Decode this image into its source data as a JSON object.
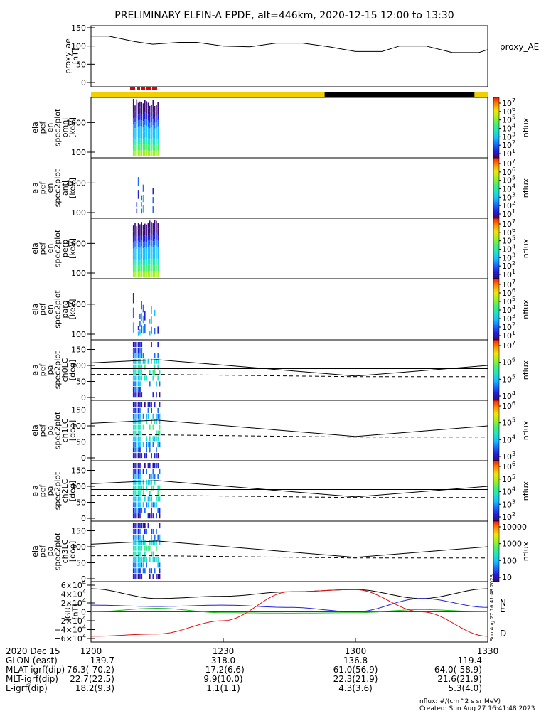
{
  "title": "PRELIMINARY ELFIN-A EPDE, alt=446km, 2020-12-15 12:00 to 13:30",
  "proxy_panel": {
    "ylabel": [
      "proxy_ae",
      "[nT]"
    ],
    "legend": "proxy_AE",
    "yticks": [
      "150",
      "100",
      "50",
      "0"
    ]
  },
  "spectra_panels": [
    {
      "ylabel": [
        "ela",
        "pef",
        "en",
        "spec2plot",
        "omni",
        "[keV]"
      ],
      "yticks": [
        "1000",
        "100"
      ]
    },
    {
      "ylabel": [
        "ela",
        "pef",
        "en",
        "spec2plot",
        "anti",
        "[keV]"
      ],
      "yticks": [
        "1000",
        "100"
      ]
    },
    {
      "ylabel": [
        "ela",
        "pef",
        "en",
        "spec2plot",
        "perp",
        "[keV]"
      ],
      "yticks": [
        "1000",
        "100"
      ]
    },
    {
      "ylabel": [
        "ela",
        "pef",
        "en",
        "spec2plot",
        "para",
        "[keV]"
      ],
      "yticks": [
        "1000",
        "100"
      ]
    }
  ],
  "pa_panels": [
    {
      "ylabel": [
        "ela",
        "pef",
        "pa",
        "spec2plot",
        "ch0LC",
        "[deg]"
      ],
      "yticks": [
        "150",
        "100",
        "50",
        "0"
      ]
    },
    {
      "ylabel": [
        "ela",
        "pef",
        "pa",
        "spec2plot",
        "ch1LC",
        "[deg]"
      ],
      "yticks": [
        "150",
        "100",
        "50",
        "0"
      ]
    },
    {
      "ylabel": [
        "ela",
        "pef",
        "pa",
        "spec2plot",
        "ch2LC",
        "[deg]"
      ],
      "yticks": [
        "150",
        "100",
        "50",
        "0"
      ]
    },
    {
      "ylabel": [
        "ela",
        "pef",
        "pa",
        "spec2plot",
        "ch3LC",
        "[deg]"
      ],
      "yticks": [
        "150",
        "100",
        "50",
        "0"
      ]
    }
  ],
  "colorbars": {
    "label": "nflux",
    "bars": [
      {
        "ticks": [
          "10",
          "10",
          "10",
          "10",
          "10",
          "10",
          "10"
        ],
        "exps": [
          "7",
          "6",
          "5",
          "4",
          "3",
          "2",
          "1"
        ]
      },
      {
        "ticks": [
          "10",
          "10",
          "10",
          "10",
          "10",
          "10",
          "10"
        ],
        "exps": [
          "7",
          "6",
          "5",
          "4",
          "3",
          "2",
          "1"
        ]
      },
      {
        "ticks": [
          "10",
          "10",
          "10",
          "10",
          "10",
          "10",
          "10"
        ],
        "exps": [
          "7",
          "6",
          "5",
          "4",
          "3",
          "2",
          "1"
        ]
      },
      {
        "ticks": [
          "10",
          "10",
          "10",
          "10",
          "10",
          "10",
          "10"
        ],
        "exps": [
          "7",
          "6",
          "5",
          "4",
          "3",
          "2",
          "1"
        ]
      },
      {
        "ticks": [
          "10",
          "10",
          "10",
          "10"
        ],
        "exps": [
          "7",
          "6",
          "5",
          "4"
        ]
      },
      {
        "ticks": [
          "10",
          "10",
          "10",
          "10"
        ],
        "exps": [
          "6",
          "5",
          "4",
          "3"
        ]
      },
      {
        "ticks": [
          "10",
          "10",
          "10",
          "10",
          "10"
        ],
        "exps": [
          "6",
          "5",
          "4",
          "3",
          "2"
        ]
      },
      {
        "ticks": [
          "10000",
          "1000",
          "100",
          "10"
        ],
        "exps": [
          "",
          "",
          "",
          ""
        ]
      }
    ]
  },
  "igrf_panel": {
    "ylabel": [
      "IGRF",
      "[nT]"
    ],
    "yticks": [
      {
        "m": "6",
        "e": "4",
        "neg": false
      },
      {
        "m": "4",
        "e": "4",
        "neg": false
      },
      {
        "m": "2",
        "e": "4",
        "neg": false
      },
      {
        "m": "0",
        "e": "",
        "neg": false
      },
      {
        "m": "2",
        "e": "4",
        "neg": true
      },
      {
        "m": "4",
        "e": "4",
        "neg": true
      },
      {
        "m": "6",
        "e": "4",
        "neg": true
      }
    ],
    "legend": [
      {
        "label": "N",
        "color": "#1f1fe0"
      },
      {
        "label": "E",
        "color": "#20c020"
      },
      {
        "label": "D",
        "color": "#e01010"
      }
    ],
    "stamp": "Sun Aug 27 16:41:48 2023"
  },
  "orbit_table": {
    "row_labels": [
      "2020 Dec 15",
      "GLON (east)",
      "MLAT-igrf(dip)",
      "MLT-igrf(dip)",
      "L-igrf(dip)"
    ],
    "columns": [
      {
        "time": "1200",
        "values": [
          "139.7",
          "-76.3(-70.2)",
          "22.7(22.5)",
          "18.2(9.3)"
        ]
      },
      {
        "time": "1230",
        "values": [
          "318.0",
          "-17.2(6.6)",
          "9.9(10.0)",
          "1.1(1.1)"
        ]
      },
      {
        "time": "1300",
        "values": [
          "136.8",
          "61.0(56.9)",
          "22.3(21.9)",
          "4.3(3.6)"
        ]
      },
      {
        "time": "1330",
        "values": [
          "119.4",
          "-64.0(-58.9)",
          "21.6(21.9)",
          "5.3(4.0)"
        ]
      }
    ]
  },
  "footer": {
    "units": "nflux: #/(cm^2 s sr MeV)",
    "created": "Created: Sun Aug 27 16:41:48 2023"
  },
  "chart_data": {
    "type": "line",
    "xlim": [
      "12:00",
      "13:30"
    ],
    "proxy_ae": {
      "name": "proxy_AE",
      "ylim": [
        0,
        160
      ],
      "x_min": [
        0,
        4,
        10,
        14,
        20,
        24,
        30,
        36,
        42,
        48,
        54,
        60,
        66,
        70,
        76,
        82,
        88,
        90
      ],
      "y": [
        127,
        127,
        112,
        105,
        110,
        110,
        100,
        98,
        108,
        108,
        98,
        85,
        85,
        100,
        100,
        82,
        82,
        90
      ]
    },
    "pitch_angle_lines": {
      "ylim": [
        0,
        180
      ],
      "x_min": [
        0,
        15,
        60,
        90
      ],
      "solid_upper": [
        108,
        118,
        67,
        100
      ],
      "solid_lower": [
        90,
        90,
        90,
        90
      ],
      "dashed": [
        72,
        72,
        65,
        65
      ]
    },
    "igrf": {
      "ylim": [
        -60000,
        60000
      ],
      "x_min": [
        0,
        15,
        30,
        45,
        60,
        75,
        90
      ],
      "series": [
        {
          "name": "N",
          "values": [
            15000,
            12000,
            15000,
            10000,
            0,
            30000,
            10000
          ]
        },
        {
          "name": "E",
          "values": [
            0,
            8000,
            -2000,
            -3000,
            -2000,
            5000,
            0
          ]
        },
        {
          "name": "D",
          "values": [
            -55000,
            -50000,
            -20000,
            45000,
            50000,
            0,
            -55000
          ]
        }
      ],
      "total_field_values": [
        52000,
        30000,
        35000,
        45000,
        50000,
        30000,
        52000
      ]
    },
    "orbit_status_bar": [
      {
        "from_min": 0,
        "to_min": 53,
        "color": "#f2d000"
      },
      {
        "from_min": 53,
        "to_min": 87,
        "color": "#000000"
      },
      {
        "from_min": 87,
        "to_min": 90,
        "color": "#f2d000"
      }
    ],
    "science_zone_min": [
      9.5,
      15.5
    ]
  }
}
